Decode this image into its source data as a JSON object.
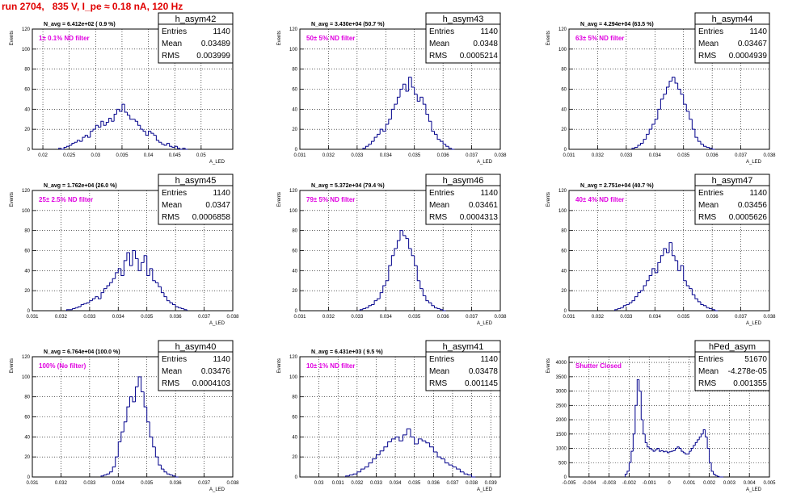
{
  "page_title": "run 2704,   835 V, I_pe ≈ 0.18 nA, 120 Hz",
  "colors": {
    "histogram": "#00008b",
    "annotation": "#e000e0",
    "title": "#e00000",
    "grid": "#000000"
  },
  "common": {
    "ylabel": "Events",
    "xlabel": "A_LED",
    "stats_labels": [
      "Entries",
      "Mean",
      "RMS"
    ]
  },
  "chart_data": [
    {
      "type": "bar",
      "name": "h_asym42",
      "navg": "N_avg = 6.412e+02 ( 0.9 %)",
      "filter": "1± 0.1% ND filter",
      "entries": "1140",
      "mean": "0.03489",
      "rms": "0.003999",
      "xlim": [
        0.018,
        0.056
      ],
      "ylim": [
        0,
        120
      ],
      "xticks": [
        0.02,
        0.025,
        0.03,
        0.035,
        0.04,
        0.045,
        0.05
      ],
      "xticklabels": [
        "0.02",
        "0.025",
        "0.03",
        "0.035",
        "0.04",
        "0.045",
        "0.05"
      ],
      "yticks": [
        0,
        20,
        40,
        60,
        80,
        100,
        120
      ],
      "x": [
        0.023,
        0.0235,
        0.024,
        0.0245,
        0.025,
        0.0255,
        0.026,
        0.0265,
        0.027,
        0.0275,
        0.028,
        0.0285,
        0.029,
        0.0295,
        0.03,
        0.0305,
        0.031,
        0.0315,
        0.032,
        0.0325,
        0.033,
        0.0335,
        0.034,
        0.0345,
        0.035,
        0.0355,
        0.036,
        0.0365,
        0.037,
        0.0375,
        0.038,
        0.0385,
        0.039,
        0.0395,
        0.04,
        0.0405,
        0.041,
        0.0415,
        0.042,
        0.0425,
        0.043,
        0.0435,
        0.044,
        0.0445,
        0.045,
        0.0455,
        0.046,
        0.0465,
        0.047
      ],
      "values": [
        1,
        0,
        2,
        3,
        4,
        6,
        7,
        9,
        8,
        12,
        14,
        12,
        18,
        20,
        24,
        22,
        28,
        24,
        27,
        31,
        28,
        35,
        40,
        38,
        45,
        37,
        34,
        30,
        30,
        28,
        24,
        20,
        18,
        14,
        18,
        16,
        14,
        9,
        7,
        5,
        4,
        6,
        3,
        2,
        3,
        1,
        0,
        1,
        0
      ]
    },
    {
      "type": "bar",
      "name": "h_asym43",
      "navg": "N_avg = 3.430e+04 (50.7 %)",
      "filter": "50± 5% ND filter",
      "entries": "1140",
      "mean": "0.0348",
      "rms": "0.0005214",
      "xlim": [
        0.031,
        0.038
      ],
      "ylim": [
        0,
        120
      ],
      "xticks": [
        0.031,
        0.032,
        0.033,
        0.034,
        0.035,
        0.036,
        0.037,
        0.038
      ],
      "xticklabels": [
        "0.031",
        "0.032",
        "0.033",
        "0.034",
        "0.035",
        "0.036",
        "0.037",
        "0.038"
      ],
      "yticks": [
        0,
        20,
        40,
        60,
        80,
        100,
        120
      ],
      "x": [
        0.0332,
        0.0333,
        0.0334,
        0.0335,
        0.0336,
        0.0337,
        0.0338,
        0.0339,
        0.034,
        0.0341,
        0.0342,
        0.0343,
        0.0344,
        0.0345,
        0.0346,
        0.0347,
        0.0348,
        0.0349,
        0.035,
        0.0351,
        0.0352,
        0.0353,
        0.0354,
        0.0355,
        0.0356,
        0.0357,
        0.0358,
        0.0359,
        0.036,
        0.0361,
        0.0362,
        0.0363
      ],
      "values": [
        1,
        3,
        5,
        8,
        12,
        15,
        20,
        18,
        25,
        30,
        40,
        45,
        52,
        60,
        65,
        58,
        72,
        62,
        55,
        48,
        52,
        45,
        35,
        28,
        18,
        15,
        10,
        8,
        5,
        3,
        1,
        0
      ]
    },
    {
      "type": "bar",
      "name": "h_asym44",
      "navg": "N_avg = 4.294e+04 (63.5 %)",
      "filter": "63± 5% ND filter",
      "entries": "1140",
      "mean": "0.03467",
      "rms": "0.0004939",
      "xlim": [
        0.031,
        0.038
      ],
      "ylim": [
        0,
        120
      ],
      "xticks": [
        0.031,
        0.032,
        0.033,
        0.034,
        0.035,
        0.036,
        0.037,
        0.038
      ],
      "xticklabels": [
        "0.031",
        "0.032",
        "0.033",
        "0.034",
        "0.035",
        "0.036",
        "0.037",
        "0.038"
      ],
      "yticks": [
        0,
        20,
        40,
        60,
        80,
        100,
        120
      ],
      "x": [
        0.0332,
        0.0333,
        0.0334,
        0.0335,
        0.0336,
        0.0337,
        0.0338,
        0.0339,
        0.034,
        0.0341,
        0.0342,
        0.0343,
        0.0344,
        0.0345,
        0.0346,
        0.0347,
        0.0348,
        0.0349,
        0.035,
        0.0351,
        0.0352,
        0.0353,
        0.0354,
        0.0355,
        0.0356,
        0.0357,
        0.0358,
        0.0359,
        0.036
      ],
      "values": [
        1,
        2,
        4,
        6,
        10,
        15,
        20,
        25,
        30,
        40,
        50,
        55,
        62,
        68,
        72,
        66,
        60,
        55,
        45,
        38,
        30,
        20,
        12,
        8,
        5,
        3,
        2,
        1,
        0
      ]
    },
    {
      "type": "bar",
      "name": "h_asym45",
      "navg": "N_avg = 1.762e+04 (26.0 %)",
      "filter": "25± 2.5% ND filter",
      "entries": "1140",
      "mean": "0.0347",
      "rms": "0.0006858",
      "xlim": [
        0.031,
        0.038
      ],
      "ylim": [
        0,
        120
      ],
      "xticks": [
        0.031,
        0.032,
        0.033,
        0.034,
        0.035,
        0.036,
        0.037,
        0.038
      ],
      "xticklabels": [
        "0.031",
        "0.032",
        "0.033",
        "0.034",
        "0.035",
        "0.036",
        "0.037",
        "0.038"
      ],
      "yticks": [
        0,
        20,
        40,
        60,
        80,
        100,
        120
      ],
      "x": [
        0.0322,
        0.0323,
        0.0324,
        0.0325,
        0.0326,
        0.0327,
        0.0328,
        0.0329,
        0.033,
        0.0331,
        0.0332,
        0.0333,
        0.0334,
        0.0335,
        0.0336,
        0.0337,
        0.0338,
        0.0339,
        0.034,
        0.0341,
        0.0342,
        0.0343,
        0.0344,
        0.0345,
        0.0346,
        0.0347,
        0.0348,
        0.0349,
        0.035,
        0.0351,
        0.0352,
        0.0353,
        0.0354,
        0.0355,
        0.0356,
        0.0357,
        0.0358,
        0.0359,
        0.036,
        0.0361,
        0.0362,
        0.0363
      ],
      "values": [
        1,
        1,
        2,
        3,
        4,
        6,
        7,
        8,
        10,
        12,
        14,
        12,
        18,
        22,
        25,
        28,
        32,
        38,
        42,
        35,
        50,
        58,
        45,
        60,
        52,
        40,
        48,
        55,
        35,
        42,
        30,
        28,
        24,
        18,
        14,
        10,
        8,
        6,
        4,
        3,
        2,
        1
      ]
    },
    {
      "type": "bar",
      "name": "h_asym46",
      "navg": "N_avg = 5.372e+04 (79.4 %)",
      "filter": "79± 5% ND filter",
      "entries": "1140",
      "mean": "0.03461",
      "rms": "0.0004313",
      "xlim": [
        0.031,
        0.038
      ],
      "ylim": [
        0,
        120
      ],
      "xticks": [
        0.031,
        0.032,
        0.033,
        0.034,
        0.035,
        0.036,
        0.037,
        0.038
      ],
      "xticklabels": [
        "0.031",
        "0.032",
        "0.033",
        "0.034",
        "0.035",
        "0.036",
        "0.037",
        "0.038"
      ],
      "yticks": [
        0,
        20,
        40,
        60,
        80,
        100,
        120
      ],
      "x": [
        0.0331,
        0.0332,
        0.0333,
        0.0334,
        0.0335,
        0.0336,
        0.0337,
        0.0338,
        0.0339,
        0.034,
        0.0341,
        0.0342,
        0.0343,
        0.0344,
        0.0345,
        0.0346,
        0.0347,
        0.0348,
        0.0349,
        0.035,
        0.0351,
        0.0352,
        0.0353,
        0.0354,
        0.0355,
        0.0356,
        0.0357,
        0.0358,
        0.0359,
        0.036
      ],
      "values": [
        1,
        2,
        3,
        5,
        6,
        10,
        12,
        18,
        25,
        30,
        45,
        55,
        62,
        70,
        80,
        75,
        72,
        62,
        55,
        45,
        30,
        22,
        15,
        10,
        8,
        5,
        3,
        2,
        1,
        0
      ]
    },
    {
      "type": "bar",
      "name": "h_asym47",
      "navg": "N_avg = 2.751e+04 (40.7 %)",
      "filter": "40± 4% ND filter",
      "entries": "1140",
      "mean": "0.03456",
      "rms": "0.0005626",
      "xlim": [
        0.031,
        0.038
      ],
      "ylim": [
        0,
        120
      ],
      "xticks": [
        0.031,
        0.032,
        0.033,
        0.034,
        0.035,
        0.036,
        0.037,
        0.038
      ],
      "xticklabels": [
        "0.031",
        "0.032",
        "0.033",
        "0.034",
        "0.035",
        "0.036",
        "0.037",
        "0.038"
      ],
      "yticks": [
        0,
        20,
        40,
        60,
        80,
        100,
        120
      ],
      "x": [
        0.0326,
        0.0327,
        0.0328,
        0.0329,
        0.033,
        0.0331,
        0.0332,
        0.0333,
        0.0334,
        0.0335,
        0.0336,
        0.0337,
        0.0338,
        0.0339,
        0.034,
        0.0341,
        0.0342,
        0.0343,
        0.0344,
        0.0345,
        0.0346,
        0.0347,
        0.0348,
        0.0349,
        0.035,
        0.0351,
        0.0352,
        0.0353,
        0.0354,
        0.0355,
        0.0356,
        0.0357,
        0.0358,
        0.0359,
        0.036,
        0.0361
      ],
      "values": [
        1,
        2,
        3,
        5,
        6,
        8,
        10,
        14,
        18,
        20,
        25,
        30,
        35,
        42,
        38,
        48,
        55,
        62,
        58,
        68,
        55,
        50,
        40,
        45,
        30,
        25,
        22,
        16,
        12,
        9,
        6,
        5,
        3,
        2,
        1,
        0
      ]
    },
    {
      "type": "bar",
      "name": "h_asym40",
      "navg": "N_avg = 6.764e+04 (100.0 %)",
      "filter": "100% (No filter)",
      "entries": "1140",
      "mean": "0.03476",
      "rms": "0.0004103",
      "xlim": [
        0.031,
        0.038
      ],
      "ylim": [
        0,
        120
      ],
      "xticks": [
        0.031,
        0.032,
        0.033,
        0.034,
        0.035,
        0.036,
        0.037,
        0.038
      ],
      "xticklabels": [
        "0.031",
        "0.032",
        "0.033",
        "0.034",
        "0.035",
        "0.036",
        "0.037",
        "0.038"
      ],
      "yticks": [
        0,
        20,
        40,
        60,
        80,
        100,
        120
      ],
      "x": [
        0.0334,
        0.0335,
        0.0336,
        0.0337,
        0.0338,
        0.0339,
        0.034,
        0.0341,
        0.0342,
        0.0343,
        0.0344,
        0.0345,
        0.0346,
        0.0347,
        0.0348,
        0.0349,
        0.035,
        0.0351,
        0.0352,
        0.0353,
        0.0354,
        0.0355,
        0.0356,
        0.0357,
        0.0358,
        0.0359,
        0.036
      ],
      "values": [
        1,
        2,
        3,
        5,
        10,
        20,
        35,
        45,
        55,
        70,
        80,
        75,
        90,
        100,
        85,
        70,
        55,
        40,
        30,
        20,
        12,
        8,
        5,
        3,
        2,
        1,
        0
      ]
    },
    {
      "type": "bar",
      "name": "h_asym41",
      "navg": "N_avg = 6.431e+03 ( 9.5 %)",
      "filter": "10± 1% ND filter",
      "entries": "1140",
      "mean": "0.03478",
      "rms": "0.001145",
      "xlim": [
        0.029,
        0.0395
      ],
      "ylim": [
        0,
        120
      ],
      "xticks": [
        0.03,
        0.031,
        0.032,
        0.033,
        0.034,
        0.035,
        0.036,
        0.037,
        0.038,
        0.039
      ],
      "xticklabels": [
        "0.03",
        "0.031",
        "0.032",
        "0.033",
        "0.034",
        "0.035",
        "0.036",
        "0.037",
        "0.038",
        "0.039"
      ],
      "yticks": [
        0,
        20,
        40,
        60,
        80,
        100,
        120
      ],
      "x": [
        0.0314,
        0.0316,
        0.0318,
        0.032,
        0.0322,
        0.0324,
        0.0326,
        0.0328,
        0.033,
        0.0332,
        0.0334,
        0.0336,
        0.0338,
        0.034,
        0.0342,
        0.0344,
        0.0346,
        0.0348,
        0.035,
        0.0352,
        0.0354,
        0.0356,
        0.0358,
        0.036,
        0.0362,
        0.0364,
        0.0366,
        0.0368,
        0.037,
        0.0372,
        0.0374,
        0.0376,
        0.0378,
        0.038
      ],
      "values": [
        1,
        2,
        3,
        5,
        8,
        10,
        14,
        18,
        22,
        26,
        30,
        35,
        38,
        40,
        36,
        42,
        48,
        40,
        33,
        38,
        36,
        34,
        30,
        25,
        20,
        18,
        14,
        12,
        10,
        8,
        5,
        3,
        2,
        0
      ]
    },
    {
      "type": "bar",
      "name": "hPed_asym",
      "navg": "",
      "filter": "Shutter Closed",
      "entries": "51670",
      "mean": "-4.278e-05",
      "rms": "0.001355",
      "xlim": [
        -0.005,
        0.005
      ],
      "ylim": [
        0,
        4200
      ],
      "xticks": [
        -0.005,
        -0.004,
        -0.003,
        -0.002,
        -0.001,
        0,
        0.001,
        0.002,
        0.003,
        0.004,
        0.005
      ],
      "xticklabels": [
        "-0.005",
        "-0.004",
        "-0.003",
        "-0.002",
        "-0.001",
        "0",
        "0.001",
        "0.002",
        "0.003",
        "0.004",
        "0.005"
      ],
      "yticks": [
        0,
        500,
        1000,
        1500,
        2000,
        2500,
        3000,
        3500,
        4000
      ],
      "yticklabels": [
        "0",
        "500",
        "1000",
        "1500",
        "2000",
        "2500",
        "3000",
        "3500",
        "4000"
      ],
      "x": [
        -0.0022,
        -0.0021,
        -0.002,
        -0.0019,
        -0.0018,
        -0.0017,
        -0.0016,
        -0.0015,
        -0.0014,
        -0.0013,
        -0.0012,
        -0.0011,
        -0.001,
        -0.0009,
        -0.0008,
        -0.0007,
        -0.0006,
        -0.0005,
        -0.0004,
        -0.0003,
        -0.0002,
        -0.0001,
        0,
        0.0001,
        0.0002,
        0.0003,
        0.0004,
        0.0005,
        0.0006,
        0.0007,
        0.0008,
        0.0009,
        0.001,
        0.0011,
        0.0012,
        0.0013,
        0.0014,
        0.0015,
        0.0016,
        0.0017,
        0.0018,
        0.0019,
        0.002,
        0.0021,
        0.0022,
        0.0023,
        0.0024,
        0.0025,
        0.0026
      ],
      "values": [
        100,
        200,
        500,
        900,
        1500,
        2500,
        3400,
        3000,
        2000,
        1500,
        1200,
        1050,
        1000,
        950,
        900,
        950,
        1000,
        900,
        920,
        880,
        900,
        850,
        880,
        900,
        920,
        1000,
        1050,
        1000,
        900,
        850,
        800,
        800,
        900,
        1000,
        1100,
        1200,
        1300,
        1400,
        1500,
        1650,
        1400,
        1000,
        500,
        200,
        100,
        50,
        20,
        0,
        0
      ]
    }
  ]
}
